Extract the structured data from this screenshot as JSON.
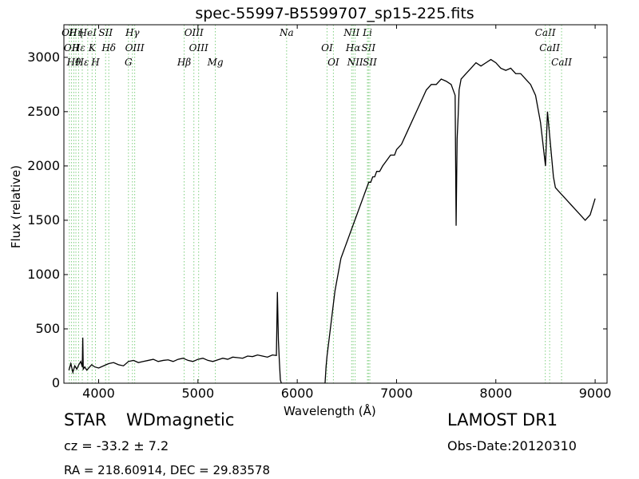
{
  "chart_data": {
    "type": "line",
    "title": "spec-55997-B5599707_sp15-225.fits",
    "xlabel": "Wavelength (Å)",
    "ylabel": "Flux (relative)",
    "xlim": [
      3650,
      9120
    ],
    "ylim": [
      0,
      3300
    ],
    "xticks": [
      4000,
      5000,
      6000,
      7000,
      8000,
      9000
    ],
    "yticks": [
      0,
      500,
      1000,
      1500,
      2000,
      2500,
      3000
    ],
    "grid": false,
    "line_color": "#000000",
    "marker_color": "#7fcf7f",
    "series": [
      {
        "x": [
          3700,
          3720,
          3740,
          3760,
          3780,
          3800,
          3820,
          3835,
          3840,
          3845,
          3860,
          3880,
          3900,
          3930,
          3960,
          4000,
          4050,
          4100,
          4150,
          4200,
          4250,
          4300,
          4350,
          4400,
          4450,
          4500,
          4550,
          4600,
          4650,
          4700,
          4750,
          4800,
          4850,
          4900,
          4950,
          5000,
          5050,
          5100,
          5150,
          5200,
          5250,
          5300,
          5350,
          5400,
          5450,
          5500,
          5550,
          5600,
          5650,
          5700,
          5750,
          5790,
          5800,
          5810,
          5820,
          5830,
          5840,
          5850,
          5870,
          5900,
          6000,
          6100,
          6200,
          6280,
          6290,
          6300,
          6320,
          6340,
          6360,
          6380,
          6400,
          6420,
          6440,
          6460,
          6480,
          6500,
          6520,
          6540,
          6560,
          6580,
          6600,
          6620,
          6640,
          6660,
          6680,
          6700,
          6720,
          6740,
          6760,
          6780,
          6800,
          6830,
          6860,
          6900,
          6940,
          6980,
          7000,
          7050,
          7100,
          7150,
          7200,
          7250,
          7300,
          7350,
          7400,
          7450,
          7500,
          7550,
          7590,
          7600,
          7610,
          7620,
          7630,
          7650,
          7700,
          7750,
          7800,
          7850,
          7900,
          7950,
          8000,
          8050,
          8100,
          8150,
          8200,
          8250,
          8300,
          8350,
          8400,
          8450,
          8500,
          8520,
          8540,
          8560,
          8580,
          8600,
          8650,
          8700,
          8750,
          8800,
          8850,
          8900,
          8950,
          9000
        ],
        "y": [
          120,
          180,
          100,
          160,
          130,
          170,
          200,
          150,
          420,
          130,
          150,
          120,
          140,
          170,
          150,
          140,
          160,
          180,
          190,
          170,
          160,
          200,
          210,
          190,
          200,
          210,
          220,
          200,
          210,
          215,
          200,
          220,
          230,
          210,
          200,
          220,
          230,
          210,
          200,
          215,
          230,
          220,
          240,
          235,
          230,
          250,
          245,
          260,
          250,
          240,
          260,
          255,
          840,
          400,
          200,
          30,
          0,
          0,
          0,
          0,
          0,
          0,
          0,
          0,
          150,
          250,
          400,
          550,
          700,
          850,
          950,
          1050,
          1150,
          1200,
          1250,
          1300,
          1350,
          1400,
          1450,
          1500,
          1550,
          1600,
          1650,
          1700,
          1750,
          1800,
          1850,
          1850,
          1900,
          1900,
          1950,
          1950,
          2000,
          2050,
          2100,
          2100,
          2150,
          2200,
          2300,
          2400,
          2500,
          2600,
          2700,
          2750,
          2750,
          2800,
          2780,
          2750,
          2650,
          1450,
          2250,
          2450,
          2700,
          2800,
          2850,
          2900,
          2950,
          2920,
          2950,
          2980,
          2950,
          2900,
          2880,
          2900,
          2850,
          2850,
          2800,
          2750,
          2650,
          2400,
          2000,
          2500,
          2300,
          2100,
          1900,
          1800,
          1750,
          1700,
          1650,
          1600,
          1550,
          1500,
          1550,
          1700
        ]
      }
    ],
    "markers_top": [
      {
        "x": 3705,
        "label": "OII"
      },
      {
        "x": 3727,
        "label": "OII"
      },
      {
        "x": 3750,
        "label": "Hθ"
      },
      {
        "x": 3771,
        "label": "Hη"
      },
      {
        "x": 3798,
        "label": "Hε"
      },
      {
        "x": 3835,
        "label": "Hε"
      },
      {
        "x": 3890,
        "label": "HeI"
      },
      {
        "x": 3934,
        "label": "K"
      },
      {
        "x": 3968,
        "label": "H"
      },
      {
        "x": 4070,
        "label": "SII"
      },
      {
        "x": 4102,
        "label": "Hδ"
      },
      {
        "x": 4300,
        "label": "G"
      },
      {
        "x": 4340,
        "label": "Hγ"
      },
      {
        "x": 4363,
        "label": "OIII"
      },
      {
        "x": 4861,
        "label": "Hβ"
      },
      {
        "x": 4959,
        "label": "OIII"
      },
      {
        "x": 5007,
        "label": "OIII"
      },
      {
        "x": 5175,
        "label": "Mg"
      },
      {
        "x": 5893,
        "label": "Na"
      },
      {
        "x": 6300,
        "label": "OI"
      },
      {
        "x": 6364,
        "label": "OI"
      },
      {
        "x": 6548,
        "label": "NII"
      },
      {
        "x": 6563,
        "label": "Hα"
      },
      {
        "x": 6583,
        "label": "NII"
      },
      {
        "x": 6707,
        "label": "Li"
      },
      {
        "x": 6717,
        "label": "SII"
      },
      {
        "x": 6731,
        "label": "SII"
      },
      {
        "x": 8498,
        "label": "CaII"
      },
      {
        "x": 8542,
        "label": "CaII"
      },
      {
        "x": 8662,
        "label": "CaII"
      }
    ]
  },
  "info": {
    "class": "STAR",
    "subclass": "WDmagnetic",
    "survey": "LAMOST DR1",
    "cz": "cz = -33.2 ± 7.2",
    "obs_date": "Obs-Date:20120310",
    "coords": "RA = 218.60914, DEC = 29.83578"
  }
}
